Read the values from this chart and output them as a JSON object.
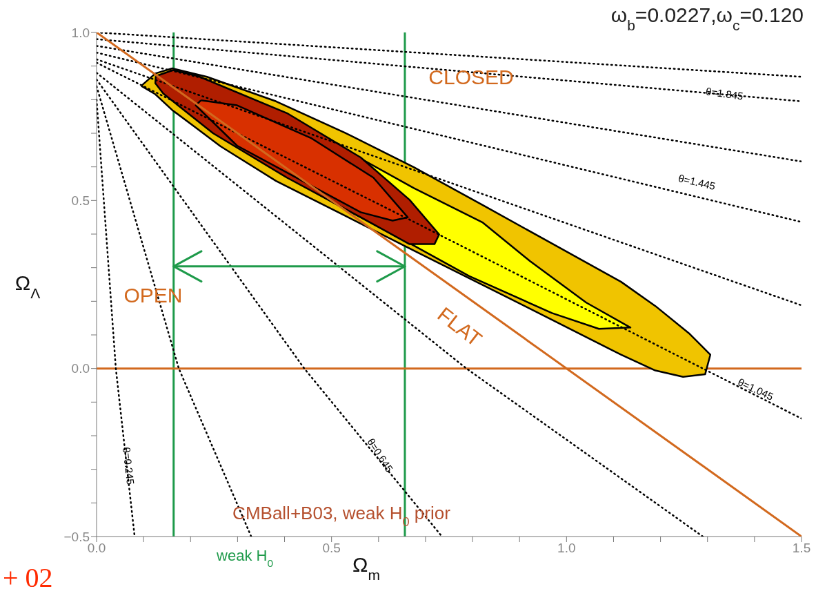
{
  "chart_data": {
    "type": "line",
    "title": "ω$_{b}$=0.0227,ω$_{c}$=0.120",
    "xlabel": "Ω$_{m}$",
    "ylabel": "Ω$_{Λ}$",
    "xlim": [
      0,
      1.5
    ],
    "ylim": [
      -0.5,
      1.0
    ],
    "xticks": [
      {
        "value": 0,
        "label": "0.0"
      },
      {
        "value": 0.1,
        "label": null
      },
      {
        "value": 0.2,
        "label": null
      },
      {
        "value": 0.3,
        "label": null
      },
      {
        "value": 0.4,
        "label": null
      },
      {
        "value": 0.5,
        "label": "0.5"
      },
      {
        "value": 0.6,
        "label": null
      },
      {
        "value": 0.7,
        "label": null
      },
      {
        "value": 0.8,
        "label": null
      },
      {
        "value": 0.9,
        "label": null
      },
      {
        "value": 1.0,
        "label": "1.0"
      },
      {
        "value": 1.1,
        "label": null
      },
      {
        "value": 1.2,
        "label": null
      },
      {
        "value": 1.3,
        "label": null
      },
      {
        "value": 1.4,
        "label": null
      },
      {
        "value": 1.5,
        "label": "1.5"
      }
    ],
    "yticks": [
      {
        "value": -0.5,
        "label": "−0.5"
      },
      {
        "value": -0.4,
        "label": null
      },
      {
        "value": -0.3,
        "label": null
      },
      {
        "value": -0.2,
        "label": null
      },
      {
        "value": -0.1,
        "label": null
      },
      {
        "value": 0,
        "label": "0.0"
      },
      {
        "value": 0.1,
        "label": null
      },
      {
        "value": 0.2,
        "label": null
      },
      {
        "value": 0.3,
        "label": null
      },
      {
        "value": 0.4,
        "label": null
      },
      {
        "value": 0.5,
        "label": "0.5"
      },
      {
        "value": 0.6,
        "label": null
      },
      {
        "value": 0.7,
        "label": null
      },
      {
        "value": 0.8,
        "label": null
      },
      {
        "value": 0.9,
        "label": null
      },
      {
        "value": 1.0,
        "label": "1.0"
      }
    ],
    "grid": false,
    "legend": false,
    "marker": "none",
    "series": [
      {
        "type": "area",
        "color": "#f0c400",
        "x": [
          0.095,
          0.125,
          0.161,
          0.235,
          0.382,
          0.528,
          0.675,
          0.822,
          0.969,
          1.116,
          1.189,
          1.262,
          1.306,
          1.295,
          1.248,
          1.189,
          1.116,
          0.969,
          0.822,
          0.675,
          0.528,
          0.382,
          0.264,
          0.205,
          0.161,
          0.125
        ],
        "values": [
          0.841,
          0.878,
          0.893,
          0.868,
          0.795,
          0.702,
          0.599,
          0.486,
          0.372,
          0.258,
          0.186,
          0.103,
          0.041,
          -0.017,
          -0.025,
          -0.006,
          0.041,
          0.145,
          0.248,
          0.351,
          0.455,
          0.558,
          0.661,
          0.723,
          0.769,
          0.816
        ]
      },
      {
        "type": "area",
        "color": "#ffff00",
        "x": [
          0.129,
          0.235,
          0.528,
          0.675,
          0.822,
          0.922,
          1.042,
          1.136,
          1.069,
          0.969,
          0.793,
          0.675,
          0.528,
          0.382
        ],
        "values": [
          0.862,
          0.857,
          0.651,
          0.537,
          0.434,
          0.32,
          0.196,
          0.122,
          0.118,
          0.165,
          0.275,
          0.366,
          0.475,
          0.589
        ]
      },
      {
        "type": "area",
        "color": "#b01e00",
        "x": [
          0.126,
          0.163,
          0.216,
          0.405,
          0.562,
          0.666,
          0.729,
          0.719,
          0.666,
          0.562,
          0.405,
          0.248,
          0.142,
          0.125
        ],
        "values": [
          0.87,
          0.888,
          0.87,
          0.76,
          0.628,
          0.502,
          0.399,
          0.37,
          0.37,
          0.45,
          0.568,
          0.7,
          0.818,
          0.849
        ]
      },
      {
        "type": "area",
        "color": "#d83000",
        "x": [
          0.222,
          0.299,
          0.456,
          0.589,
          0.662,
          0.63,
          0.562,
          0.405,
          0.299,
          0.211
        ],
        "values": [
          0.798,
          0.783,
          0.686,
          0.568,
          0.45,
          0.44,
          0.465,
          0.583,
          0.663,
          0.783
        ]
      },
      {
        "color": "#000000",
        "line_style": "dotted",
        "x": [
          0,
          1.5
        ],
        "values": [
          1.0,
          0.868
        ]
      },
      {
        "color": "#000000",
        "line_style": "dotted",
        "x": [
          0,
          1.5
        ],
        "values": [
          0.98,
          0.795
        ]
      },
      {
        "color": "#000000",
        "line_style": "dotted",
        "x": [
          0,
          1.5
        ],
        "values": [
          0.96,
          0.616
        ]
      },
      {
        "color": "#000000",
        "line_style": "dotted",
        "x": [
          0,
          1.5
        ],
        "values": [
          0.94,
          0.436
        ]
      },
      {
        "color": "#000000",
        "line_style": "dotted",
        "x": [
          0,
          1.5
        ],
        "values": [
          0.92,
          0.188
        ]
      },
      {
        "color": "#000000",
        "line_style": "dotted",
        "x": [
          0,
          0.656,
          1.29,
          1.5
        ],
        "values": [
          0.91,
          0.45,
          0.0,
          -0.149
        ]
      },
      {
        "color": "#000000",
        "line_style": "dotted",
        "x": [
          0,
          0.787,
          1.29
        ],
        "values": [
          0.88,
          0.0,
          -0.5
        ]
      },
      {
        "color": "#000000",
        "line_style": "dotted",
        "x": [
          0,
          0.442,
          0.735
        ],
        "values": [
          0.86,
          0.0,
          -0.5
        ]
      },
      {
        "color": "#000000",
        "line_style": "dotted",
        "x": [
          0,
          0.175,
          0.329
        ],
        "values": [
          0.84,
          0.0,
          -0.5
        ]
      },
      {
        "color": "#000000",
        "line_style": "dotted",
        "x": [
          0,
          0.041,
          0.081
        ],
        "values": [
          0.8,
          0.0,
          -0.5
        ]
      },
      {
        "color": "#d2691e",
        "line_style": "solid",
        "x": [
          0,
          1.5
        ],
        "values": [
          1.0,
          -0.5
        ]
      },
      {
        "color": "#1e9a4a",
        "line_style": "solid",
        "x": [
          0.164,
          0.656
        ],
        "values": [
          0.304,
          0.304
        ]
      },
      {
        "color": "#1e9a4a",
        "line_style": "solid",
        "x": [
          0.223,
          0.164,
          0.223
        ],
        "values": [
          0.349,
          0.304,
          0.259
        ]
      },
      {
        "color": "#1e9a4a",
        "line_style": "solid",
        "x": [
          0.597,
          0.656,
          0.597
        ],
        "values": [
          0.349,
          0.304,
          0.259
        ]
      }
    ],
    "ref_lines": [
      {
        "axis": "x",
        "value": 0.164,
        "color": "#1e9a4a"
      },
      {
        "axis": "x",
        "value": 0.656,
        "color": "#1e9a4a"
      },
      {
        "axis": "y",
        "value": 0,
        "color": "#d2691e"
      }
    ],
    "annotations": [
      "CLOSED",
      "OPEN",
      "CMBall+B03, weak H$_{0}$ prior",
      "weak H$_{0}$",
      "+ 02",
      "FLAT",
      "θ=1.845",
      "θ=1.445",
      "θ=1.045",
      "θ=0.645",
      "θ=0.245"
    ]
  }
}
